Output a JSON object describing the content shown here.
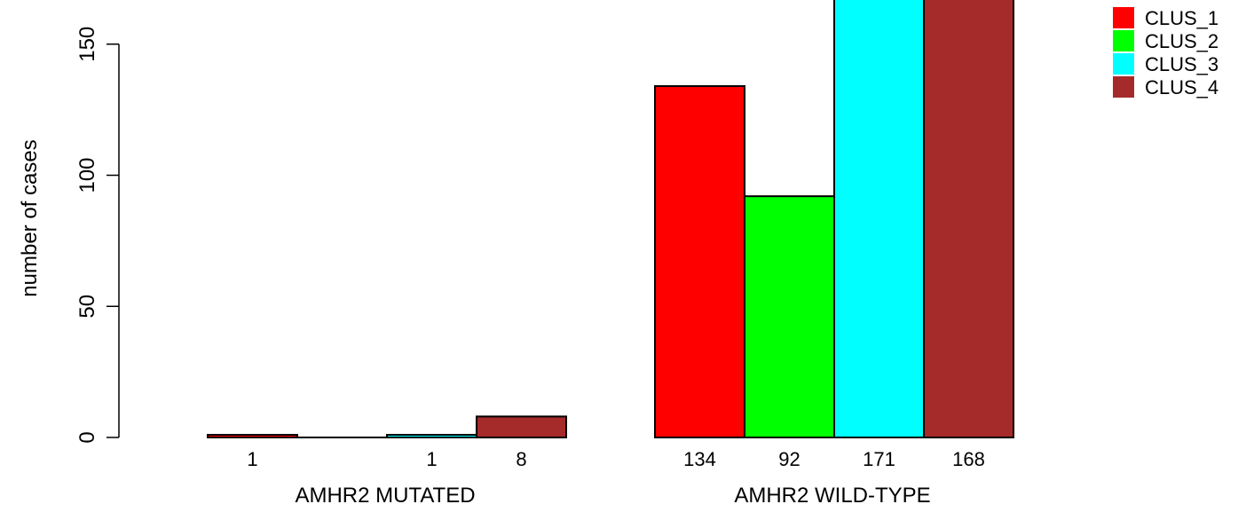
{
  "chart_data": {
    "type": "bar",
    "ylabel": "number of cases",
    "yticks": [
      0,
      50,
      100,
      150
    ],
    "ylim": [
      0,
      171
    ],
    "groups": [
      "AMHR2 MUTATED",
      "AMHR2 WILD-TYPE"
    ],
    "series": [
      {
        "name": "CLUS_1",
        "color": "#ff0000",
        "values": [
          1,
          134
        ]
      },
      {
        "name": "CLUS_2",
        "color": "#00ff00",
        "values": [
          0,
          92
        ]
      },
      {
        "name": "CLUS_3",
        "color": "#00ffff",
        "values": [
          1,
          171
        ]
      },
      {
        "name": "CLUS_4",
        "color": "#a52a2a",
        "values": [
          8,
          168
        ]
      }
    ],
    "bar_labels": [
      [
        "1",
        "",
        "1",
        "8"
      ],
      [
        "134",
        "92",
        "171",
        "168"
      ]
    ],
    "legend_position": "top-right",
    "grid": false
  }
}
